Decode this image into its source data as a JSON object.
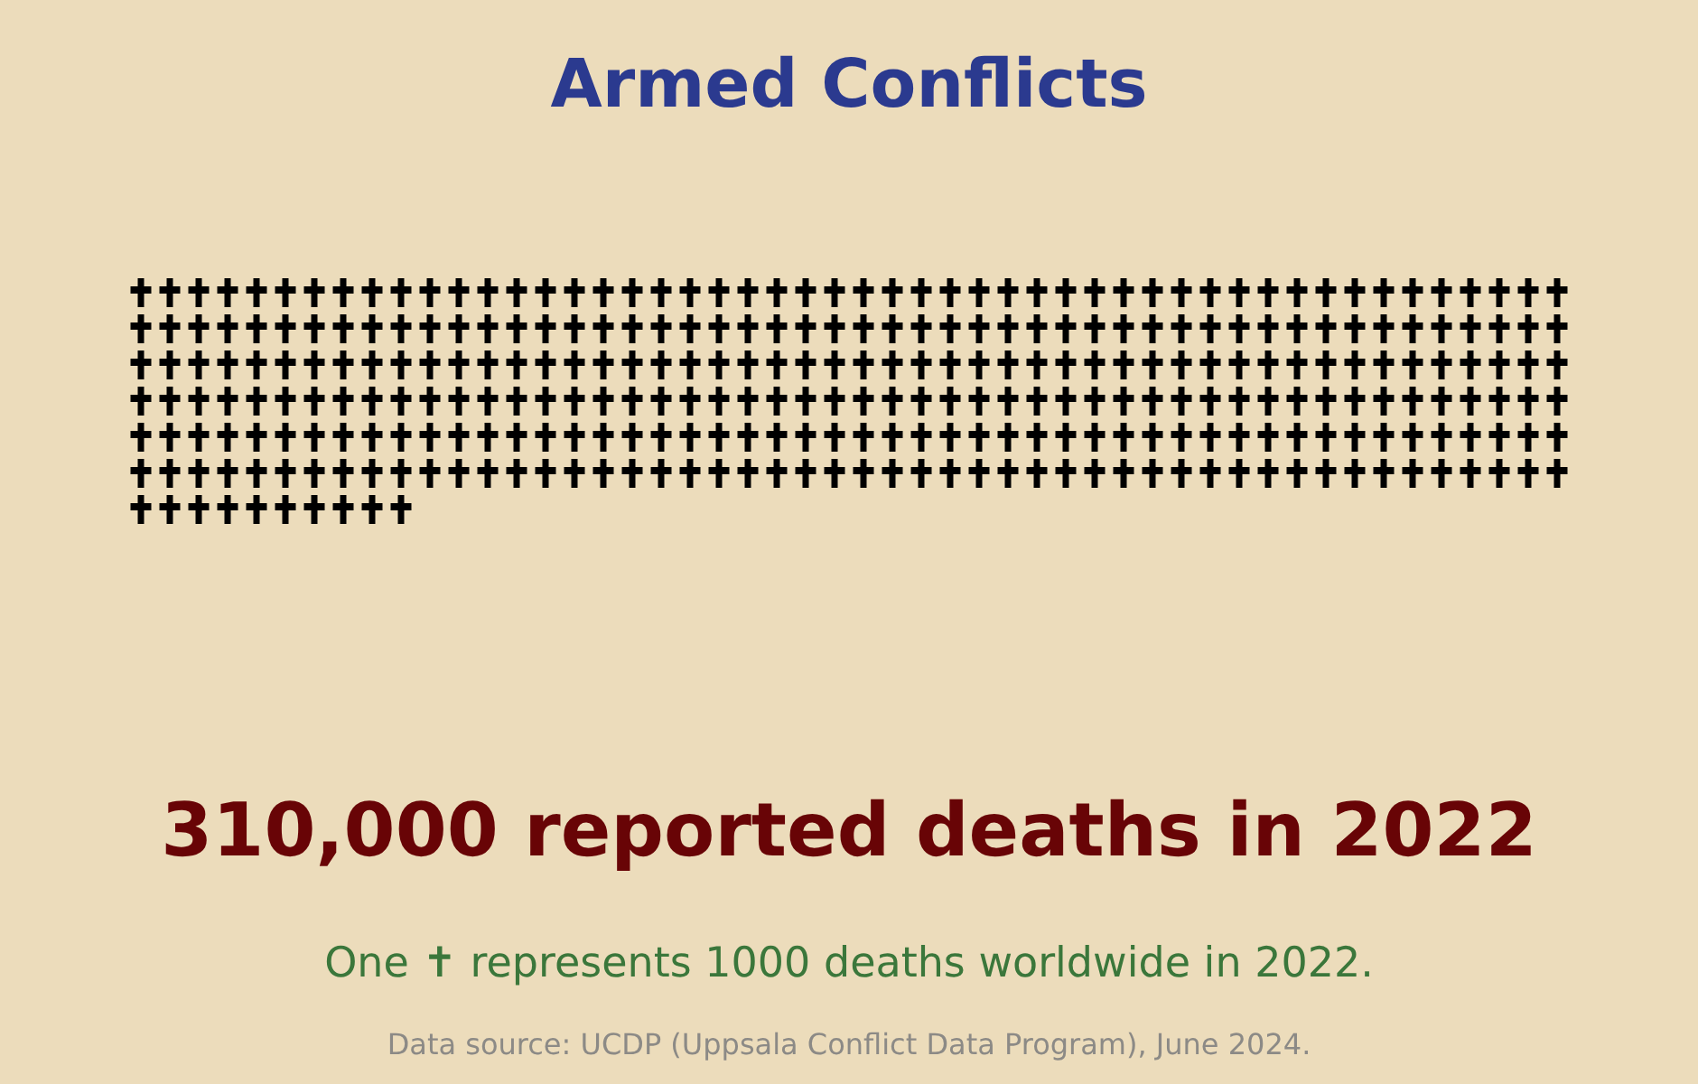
{
  "chart_data": {
    "type": "other",
    "title": "Armed Conflicts",
    "subtitle": "reported deaths in 2022",
    "values": [
      310000
    ],
    "value_labels": [
      "310,000"
    ],
    "color": "#000000",
    "annotations": [
      "One ✝ represents 1000 deaths worldwide in 2022.",
      "Data source: UCDP (Uppsala Conflict Data Program), June 2024."
    ]
  }
}
